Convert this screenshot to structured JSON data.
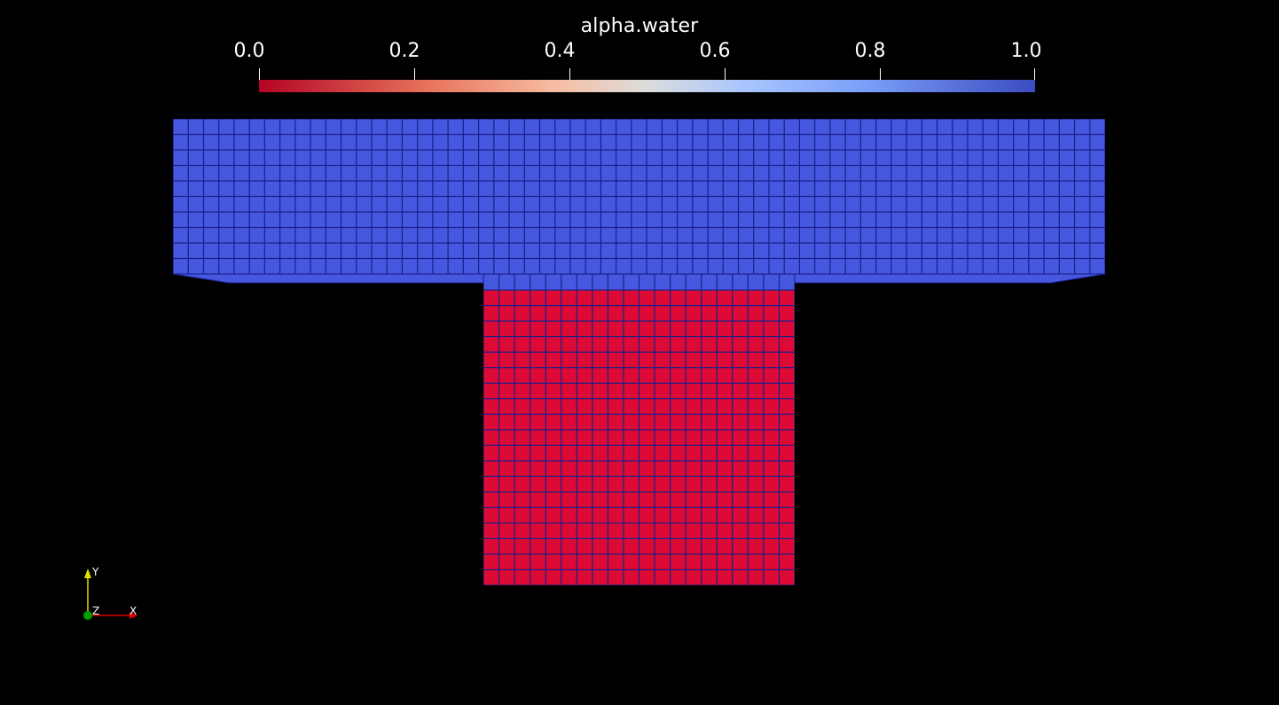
{
  "colorbar": {
    "title": "alpha.water",
    "ticks": [
      "0.0",
      "0.2",
      "0.4",
      "0.6",
      "0.8",
      "1.0"
    ],
    "range": [
      0.0,
      1.0
    ],
    "colors": {
      "low": "#b40426",
      "mid": "#dddddd",
      "high": "#3b4cc0"
    }
  },
  "mesh": {
    "water_color": "#4658e0",
    "air_color": "#dc0a35",
    "grid_color": "#1a1f8a",
    "top_region": {
      "alpha_water": 1.0,
      "cols": 61,
      "rows": 10
    },
    "stem_region": {
      "alpha_water": 0.0,
      "cols": 20,
      "rows": 19
    }
  },
  "orientation_axes": {
    "x_label": "X",
    "y_label": "Y",
    "z_label": "Z",
    "x_color": "#e00000",
    "y_color": "#e0e000",
    "z_color": "#00a000"
  }
}
